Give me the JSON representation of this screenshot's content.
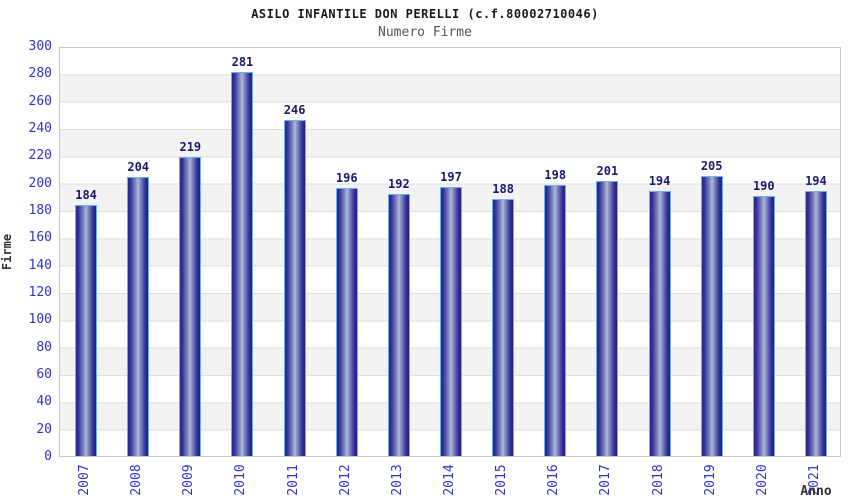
{
  "chart_data": {
    "type": "bar",
    "title": "ASILO INFANTILE DON PERELLI (c.f.80002710046)",
    "subtitle": "Numero Firme",
    "xlabel": "Anno",
    "ylabel": "Firme",
    "categories": [
      "2007",
      "2008",
      "2009",
      "2010",
      "2011",
      "2012",
      "2013",
      "2014",
      "2015",
      "2016",
      "2017",
      "2018",
      "2019",
      "2020",
      "2021"
    ],
    "values": [
      184,
      204,
      219,
      281,
      246,
      196,
      192,
      197,
      188,
      198,
      201,
      194,
      205,
      190,
      194
    ],
    "ylim": [
      0,
      300
    ],
    "ytick_step": 20,
    "grid": "horizontal",
    "legend": "none",
    "colors": {
      "bar_dark": "#26268c",
      "bar_light": "#b0b8d9",
      "bar_border": "#6fb0e8",
      "value_label": "#191970",
      "tick_label": "#3333cc",
      "title": "#1a1a1a",
      "subtitle": "#555555",
      "band_gray": "#f3f3f3",
      "gridline": "#dedede"
    }
  }
}
